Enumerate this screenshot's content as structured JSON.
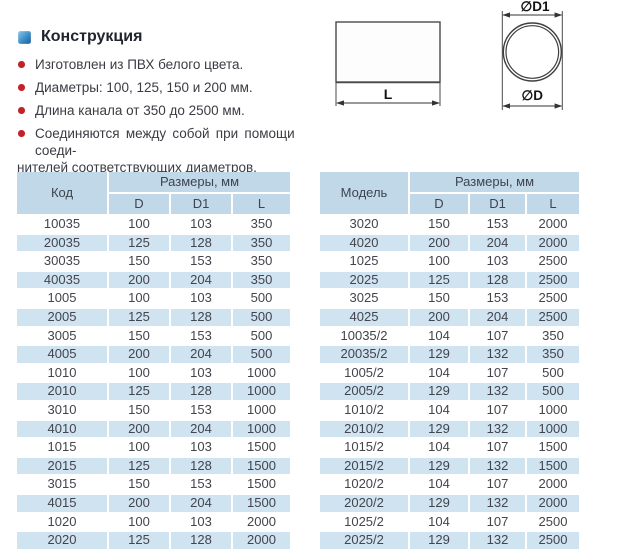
{
  "construction": {
    "title": "Конструкция",
    "bullets": [
      {
        "text": "Изготовлен из ПВХ белого цвета."
      },
      {
        "text": "Диаметры: 100, 125, 150 и 200 мм."
      },
      {
        "text": "Длина канала от 350 до 2500 мм."
      },
      {
        "text": "Соединяются между собой при помощи соеди-",
        "text2": "нителей соответствующих диаметров."
      }
    ],
    "bullet_color": "#c2222a",
    "title_icon": "blue-square-icon"
  },
  "drawings": {
    "cylinder": {
      "length_label": "L"
    },
    "circle": {
      "outer_diameter_label": "∅D1",
      "inner_diameter_label": "∅D"
    }
  },
  "colors": {
    "table_header_bg": "#c1d8e8",
    "table_stripe_bg": "#cfe3f0",
    "accent_red": "#c2222a",
    "icon_blue": "#2a7cb8"
  },
  "tables": [
    {
      "id_header": "Код",
      "size_header": "Размеры, мм",
      "columns": [
        "D",
        "D1",
        "L"
      ],
      "rows": [
        [
          "10035",
          "100",
          "103",
          "350"
        ],
        [
          "20035",
          "125",
          "128",
          "350"
        ],
        [
          "30035",
          "150",
          "153",
          "350"
        ],
        [
          "40035",
          "200",
          "204",
          "350"
        ],
        [
          "1005",
          "100",
          "103",
          "500"
        ],
        [
          "2005",
          "125",
          "128",
          "500"
        ],
        [
          "3005",
          "150",
          "153",
          "500"
        ],
        [
          "4005",
          "200",
          "204",
          "500"
        ],
        [
          "1010",
          "100",
          "103",
          "1000"
        ],
        [
          "2010",
          "125",
          "128",
          "1000"
        ],
        [
          "3010",
          "150",
          "153",
          "1000"
        ],
        [
          "4010",
          "200",
          "204",
          "1000"
        ],
        [
          "1015",
          "100",
          "103",
          "1500"
        ],
        [
          "2015",
          "125",
          "128",
          "1500"
        ],
        [
          "3015",
          "150",
          "153",
          "1500"
        ],
        [
          "4015",
          "200",
          "204",
          "1500"
        ],
        [
          "1020",
          "100",
          "103",
          "2000"
        ],
        [
          "2020",
          "125",
          "128",
          "2000"
        ]
      ]
    },
    {
      "id_header": "Модель",
      "size_header": "Размеры, мм",
      "columns": [
        "D",
        "D1",
        "L"
      ],
      "rows": [
        [
          "3020",
          "150",
          "153",
          "2000"
        ],
        [
          "4020",
          "200",
          "204",
          "2000"
        ],
        [
          "1025",
          "100",
          "103",
          "2500"
        ],
        [
          "2025",
          "125",
          "128",
          "2500"
        ],
        [
          "3025",
          "150",
          "153",
          "2500"
        ],
        [
          "4025",
          "200",
          "204",
          "2500"
        ],
        [
          "10035/2",
          "104",
          "107",
          "350"
        ],
        [
          "20035/2",
          "129",
          "132",
          "350"
        ],
        [
          "1005/2",
          "104",
          "107",
          "500"
        ],
        [
          "2005/2",
          "129",
          "132",
          "500"
        ],
        [
          "1010/2",
          "104",
          "107",
          "1000"
        ],
        [
          "2010/2",
          "129",
          "132",
          "1000"
        ],
        [
          "1015/2",
          "104",
          "107",
          "1500"
        ],
        [
          "2015/2",
          "129",
          "132",
          "1500"
        ],
        [
          "1020/2",
          "104",
          "107",
          "2000"
        ],
        [
          "2020/2",
          "129",
          "132",
          "2000"
        ],
        [
          "1025/2",
          "104",
          "107",
          "2500"
        ],
        [
          "2025/2",
          "129",
          "132",
          "2500"
        ]
      ]
    }
  ]
}
